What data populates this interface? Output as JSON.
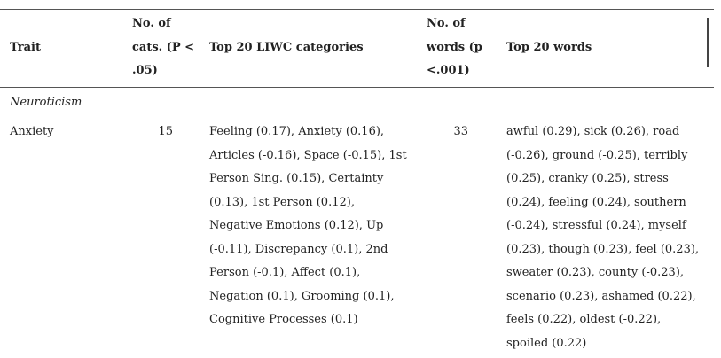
{
  "table": {
    "headers": {
      "trait": "Trait",
      "num_cats_line1": "No. of",
      "num_cats_line2": "cats. (P <",
      "num_cats_line3": ".05)",
      "liwc": "Top 20 LIWC categories",
      "num_words_line1": "No. of",
      "num_words_line2": "words (p",
      "num_words_line3": "<.001)",
      "words": "Top 20 words"
    },
    "section_label": "Neuroticism",
    "rows": [
      {
        "trait": "Anxiety",
        "num_cats": "15",
        "liwc_lines": [
          "Feeling (0.17), Anxiety (0.16),",
          "Articles (-0.16), Space (-0.15), 1st",
          "Person Sing. (0.15), Certainty",
          "(0.13), 1st Person (0.12),",
          "Negative Emotions (0.12), Up",
          "(-0.11), Discrepancy (0.1), 2nd",
          "Person (-0.1), Affect (0.1),",
          "Negation (0.1), Grooming (0.1),",
          "Cognitive Processes (0.1)"
        ],
        "num_words": "33",
        "words_lines": [
          "awful (0.29), sick (0.26), road",
          "(-0.26), ground (-0.25), terribly",
          "(0.25), cranky (0.25), stress",
          "(0.24), feeling (0.24), southern",
          "(-0.24), stressful (0.24), myself",
          "(0.23), though (0.23), feel (0.23),",
          "sweater (0.23), county (-0.23),",
          "scenario (0.23), ashamed (0.22),",
          "feels (0.22), oldest (-0.22),",
          "spoiled (0.22)"
        ]
      }
    ]
  }
}
